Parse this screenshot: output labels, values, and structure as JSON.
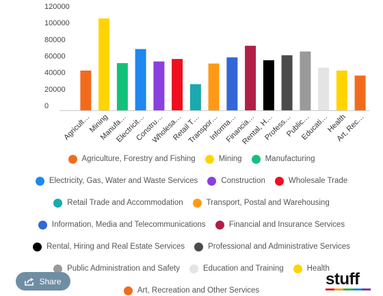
{
  "chart_data": {
    "type": "bar",
    "categories": [
      "Agriculture, Forestry and Fishing",
      "Mining",
      "Manufacturing",
      "Electricity, Gas, Water and Waste Services",
      "Construction",
      "Wholesale Trade",
      "Retail Trade and Accommodation",
      "Transport, Postal and Warehousing",
      "Information, Media and Telecommunications",
      "Financial and Insurance Services",
      "Rental, Hiring and Real Estate Services",
      "Professional and Administrative Services",
      "Public Administration and Safety",
      "Education and Training",
      "Health",
      "Art, Recreation and Other Services"
    ],
    "tick_labels": [
      "Agricult…",
      "Mining",
      "Manufa…",
      "Electricit…",
      "Constru…",
      "Wholesa…",
      "Retail T…",
      "Transpor…",
      "Informa…",
      "Financia…",
      "Rental, H…",
      "Profess…",
      "Public…",
      "Educati…",
      "Health",
      "Art, Rec…"
    ],
    "values": [
      48000,
      111000,
      57000,
      74000,
      59000,
      62000,
      31500,
      56500,
      64000,
      78000,
      60500,
      66500,
      71000,
      51500,
      48000,
      42000
    ],
    "colors": [
      "#f26b1d",
      "#ffd400",
      "#12c27b",
      "#1f87f0",
      "#8a3fe0",
      "#ef0f1e",
      "#1aa9ad",
      "#ff9a16",
      "#3366d6",
      "#b01f46",
      "#000000",
      "#4b4b4b",
      "#9a9a9a",
      "#e4e4e4",
      "#ffd400",
      "#f26b1d"
    ],
    "y_ticks": [
      "0",
      "20000",
      "40000",
      "60000",
      "80000",
      "100000",
      "120000"
    ],
    "ylim": [
      0,
      120000
    ],
    "grid": false,
    "legend_position": "bottom",
    "title": "",
    "xlabel": "",
    "ylabel": ""
  },
  "share": {
    "label": "Share",
    "icon": "share-icon"
  },
  "brand": {
    "name": "stuff",
    "bar_colors": [
      "#e4262c",
      "#f7a21b",
      "#3fae49",
      "#1d8dd8",
      "#7b3fa0"
    ]
  }
}
